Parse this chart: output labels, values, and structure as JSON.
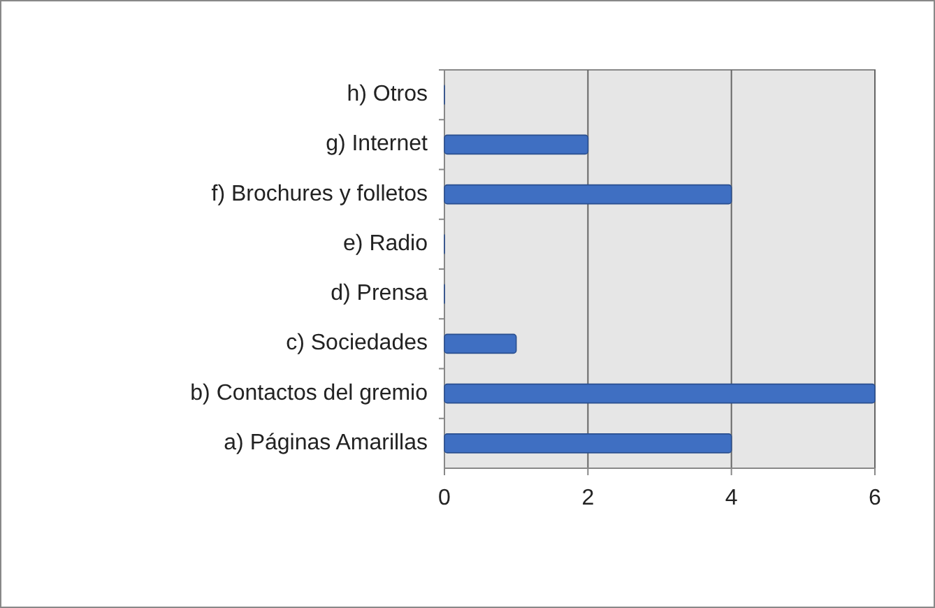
{
  "chart_data": {
    "type": "bar",
    "orientation": "horizontal",
    "categories": [
      "h) Otros",
      "g) Internet",
      "f) Brochures y folletos",
      "e) Radio",
      "d) Prensa",
      "c) Sociedades",
      "b) Contactos del gremio",
      "a) Páginas Amarillas"
    ],
    "values": [
      0,
      2,
      4,
      0,
      0,
      1,
      6,
      4
    ],
    "color": "#3f6fc2",
    "xlim": [
      0,
      6
    ],
    "xticks": [
      0,
      2,
      4,
      6
    ],
    "grid": "x"
  }
}
